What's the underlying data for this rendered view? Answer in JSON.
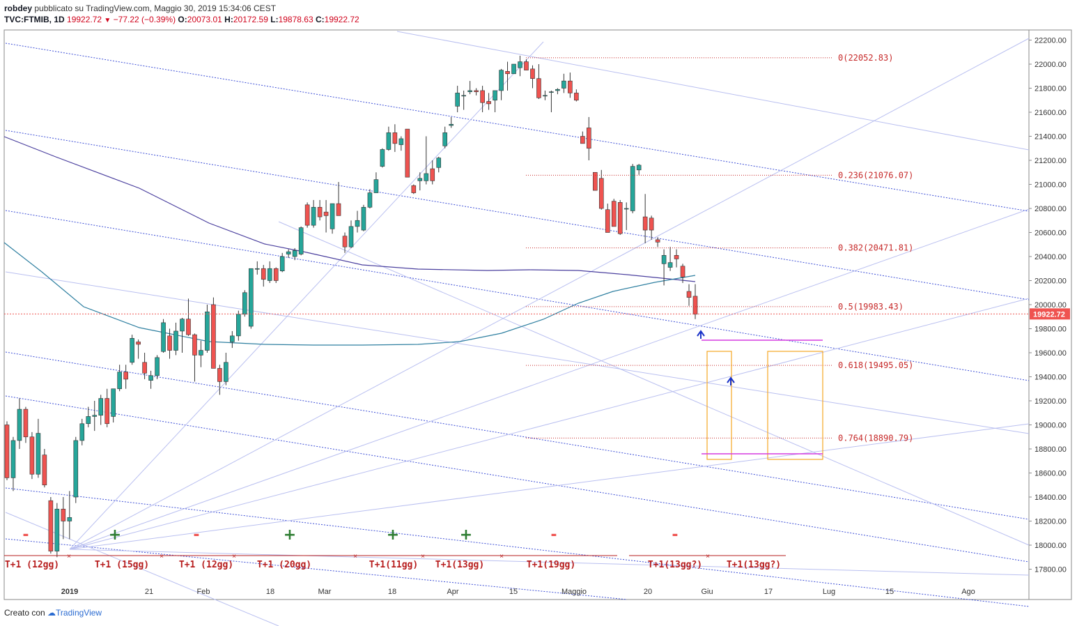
{
  "header": {
    "publisher": "robdey",
    "published_text": "pubblicato su TradingView.com, Maggio 30, 2019 15:34:06 CEST",
    "symbol": "TVC:FTMIB, 1D",
    "last": "19922.72",
    "change": "−77.22 (−0.39%)",
    "open_label": "O:",
    "open": "20073.01",
    "high_label": "H:",
    "high": "20172.59",
    "low_label": "L:",
    "low": "19878.63",
    "close_label": "C:",
    "close": "19922.72"
  },
  "footer": {
    "created_with": "Creato con",
    "brand": "TradingView"
  },
  "colors": {
    "up": "#26a69a",
    "down": "#ef5350",
    "fib": "#c62828",
    "grid_blue": "#3c4ed6",
    "ma_long": "#4a3f9e",
    "ma_short": "#2e7fa0",
    "rect": "#f5a623",
    "magenta": "#d63ce0",
    "cycle": "#b71c1c",
    "plus": "#2e7d32"
  },
  "chart_data": {
    "type": "candlestick",
    "y_axis": {
      "min": 17600,
      "max": 22300,
      "ticks": [
        "22200.00",
        "22000.00",
        "21800.00",
        "21600.00",
        "21400.00",
        "21200.00",
        "21000.00",
        "20800.00",
        "20600.00",
        "20400.00",
        "20200.00",
        "20000.00",
        "19800.00",
        "19600.00",
        "19400.00",
        "19200.00",
        "19000.00",
        "18800.00",
        "18600.00",
        "18400.00",
        "18200.00",
        "18000.00",
        "17800.00"
      ]
    },
    "x_axis": {
      "ticks": [
        "2019",
        "21",
        "Feb",
        "18",
        "Mar",
        "18",
        "Apr",
        "15",
        "Maggio",
        "20",
        "Giu",
        "17",
        "Lug",
        "15",
        "Ago"
      ]
    },
    "last_price_label": "19922.72",
    "fibonacci": [
      {
        "label": "0(22052.83)",
        "value": 22052.83
      },
      {
        "label": "0.236(21076.07)",
        "value": 21076.07
      },
      {
        "label": "0.382(20471.81)",
        "value": 20471.81
      },
      {
        "label": "0.5(19983.43)",
        "value": 19983.43
      },
      {
        "label": "0.618(19495.05)",
        "value": 19495.05
      },
      {
        "label": "0.764(18890.79)",
        "value": 18890.79
      }
    ],
    "cycle_labels": [
      "T+1 (12gg)",
      "T+1 (15gg)",
      "T+1 (12gg)",
      "T+1 (20gg)",
      "T+1(11gg)",
      "T+1(13gg)",
      "T+1(19gg)",
      "T+1(13gg?)",
      "T+1(13gg?)"
    ],
    "signs": [
      "-",
      "+",
      "-",
      "+",
      "+",
      "+",
      "-",
      "-"
    ],
    "candles": [
      [
        19000,
        19030,
        18540,
        18560
      ],
      [
        18560,
        18900,
        18450,
        18870
      ],
      [
        18870,
        19220,
        18800,
        19130
      ],
      [
        19130,
        19150,
        18850,
        18900
      ],
      [
        18900,
        18940,
        18550,
        18590
      ],
      [
        18590,
        19050,
        18560,
        18930
      ],
      [
        18750,
        18800,
        18480,
        18500
      ],
      [
        18370,
        18400,
        17930,
        17950
      ],
      [
        17950,
        18350,
        17900,
        18300
      ],
      [
        18300,
        18400,
        18050,
        18200
      ],
      [
        18200,
        18450,
        18050,
        18230
      ],
      [
        18400,
        18900,
        18350,
        18870
      ],
      [
        18870,
        19050,
        18830,
        19010
      ],
      [
        19010,
        19150,
        18980,
        19070
      ],
      [
        19070,
        19200,
        18950,
        19080
      ],
      [
        19080,
        19250,
        19000,
        19220
      ],
      [
        19220,
        19300,
        18980,
        19010
      ],
      [
        19070,
        19300,
        19020,
        19300
      ],
      [
        19300,
        19500,
        19280,
        19440
      ],
      [
        19440,
        19500,
        19300,
        19380
      ],
      [
        19520,
        19750,
        19500,
        19720
      ],
      [
        19690,
        19710,
        19550,
        19670
      ],
      [
        19520,
        19600,
        19380,
        19430
      ],
      [
        19370,
        19450,
        19300,
        19410
      ],
      [
        19410,
        19580,
        19380,
        19560
      ],
      [
        19610,
        19880,
        19600,
        19850
      ],
      [
        19740,
        19800,
        19550,
        19620
      ],
      [
        19620,
        19850,
        19580,
        19780
      ],
      [
        19780,
        19890,
        19600,
        19880
      ],
      [
        19880,
        20050,
        19740,
        19750
      ],
      [
        19750,
        19760,
        19360,
        19580
      ],
      [
        19580,
        19700,
        19480,
        19620
      ],
      [
        19620,
        20000,
        19600,
        19940
      ],
      [
        20000,
        20060,
        19470,
        19470
      ],
      [
        19470,
        19500,
        19250,
        19360
      ],
      [
        19360,
        19600,
        19330,
        19520
      ],
      [
        19690,
        19780,
        19640,
        19740
      ],
      [
        19740,
        19950,
        19700,
        19920
      ],
      [
        19920,
        20120,
        19900,
        20100
      ],
      [
        19820,
        20300,
        19800,
        20300
      ],
      [
        20300,
        20360,
        20250,
        20300
      ],
      [
        20300,
        20330,
        20150,
        20210
      ],
      [
        20200,
        20360,
        20180,
        20300
      ],
      [
        20300,
        20310,
        20180,
        20200
      ],
      [
        20280,
        20430,
        20270,
        20400
      ],
      [
        20420,
        20460,
        20390,
        20440
      ],
      [
        20400,
        20470,
        20370,
        20450
      ],
      [
        20420,
        20650,
        20410,
        20640
      ],
      [
        20830,
        20850,
        20640,
        20660
      ],
      [
        20660,
        20870,
        20640,
        20810
      ],
      [
        20810,
        20870,
        20700,
        20730
      ],
      [
        20770,
        20870,
        20600,
        20740
      ],
      [
        20630,
        20840,
        20590,
        20840
      ],
      [
        20840,
        21020,
        20760,
        20740
      ],
      [
        20570,
        20600,
        20430,
        20480
      ],
      [
        20480,
        20700,
        20470,
        20650
      ],
      [
        20650,
        20780,
        20600,
        20700
      ],
      [
        20620,
        20830,
        20610,
        20810
      ],
      [
        20810,
        20960,
        20800,
        20930
      ],
      [
        20930,
        21100,
        20930,
        21040
      ],
      [
        21150,
        21300,
        21140,
        21290
      ],
      [
        21290,
        21480,
        21280,
        21430
      ],
      [
        21430,
        21500,
        21270,
        21340
      ],
      [
        21330,
        21400,
        21280,
        21380
      ],
      [
        21460,
        21450,
        21060,
        21060
      ],
      [
        20990,
        21000,
        20920,
        20930
      ],
      [
        21030,
        21100,
        20950,
        21050
      ],
      [
        21030,
        21400,
        21000,
        21090
      ],
      [
        21130,
        21200,
        21000,
        21030
      ],
      [
        21140,
        21230,
        21100,
        21220
      ],
      [
        21320,
        21480,
        21300,
        21430
      ],
      [
        21490,
        21560,
        21470,
        21500
      ],
      [
        21650,
        21820,
        21600,
        21760
      ],
      [
        21740,
        21780,
        21620,
        21740
      ],
      [
        21770,
        21860,
        21750,
        21780
      ],
      [
        21780,
        21800,
        21740,
        21770
      ],
      [
        21780,
        21820,
        21600,
        21680
      ],
      [
        21690,
        21760,
        21620,
        21670
      ],
      [
        21700,
        21780,
        21600,
        21780
      ],
      [
        21780,
        21960,
        21700,
        21950
      ],
      [
        21940,
        22020,
        21780,
        21920
      ],
      [
        21920,
        22000,
        21960,
        22000
      ],
      [
        21970,
        22070,
        21900,
        22020
      ],
      [
        22020,
        22040,
        21950,
        21950
      ],
      [
        21960,
        21990,
        21800,
        21880
      ],
      [
        21880,
        22000,
        21710,
        21720
      ],
      [
        21740,
        21780,
        21700,
        21740
      ],
      [
        21770,
        21780,
        21600,
        21770
      ],
      [
        21780,
        21800,
        21750,
        21790
      ],
      [
        21800,
        21920,
        21760,
        21860
      ],
      [
        21860,
        21930,
        21720,
        21760
      ],
      [
        21760,
        21790,
        21690,
        21700
      ],
      [
        21400,
        21440,
        21340,
        21340
      ],
      [
        21470,
        21560,
        21200,
        21300
      ],
      [
        21100,
        21100,
        20950,
        20950
      ],
      [
        21050,
        21120,
        20790,
        20800
      ],
      [
        20790,
        20840,
        20600,
        20600
      ],
      [
        20860,
        20880,
        20650,
        20650
      ],
      [
        20850,
        20870,
        20580,
        20590
      ],
      [
        20800,
        20850,
        20620,
        20800
      ],
      [
        20780,
        21170,
        20760,
        21150
      ],
      [
        21120,
        21170,
        21080,
        21160
      ],
      [
        20730,
        20920,
        20510,
        20620
      ],
      [
        20720,
        20740,
        20540,
        20620
      ],
      [
        20540,
        20560,
        20480,
        20520
      ],
      [
        20340,
        20460,
        20160,
        20410
      ],
      [
        20310,
        20480,
        20280,
        20350
      ],
      [
        20410,
        20460,
        20310,
        20380
      ],
      [
        20320,
        20340,
        20180,
        20230
      ],
      [
        20110,
        20170,
        19990,
        20060
      ],
      [
        20070,
        20170,
        19880,
        19920
      ]
    ]
  }
}
